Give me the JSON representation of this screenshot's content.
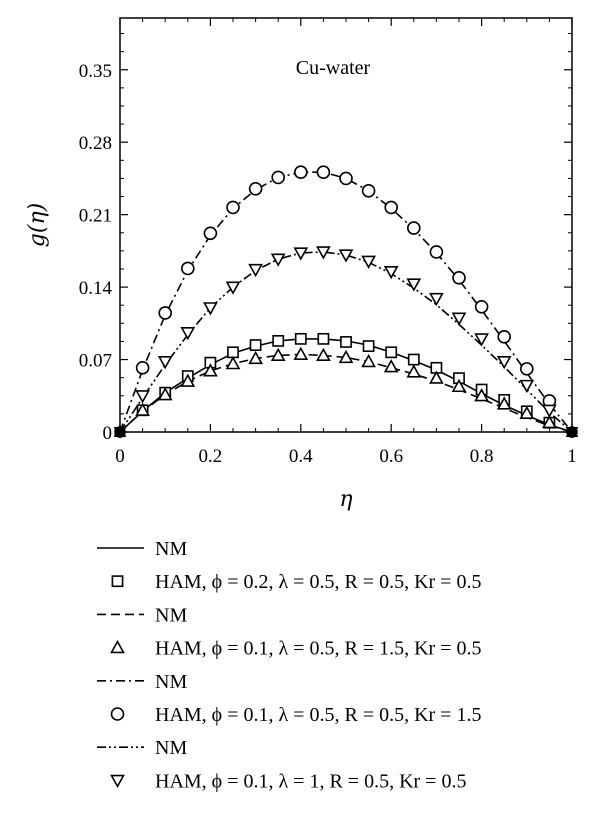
{
  "chart_data": {
    "type": "line",
    "xlabel": "η",
    "ylabel": "g(η)",
    "annotation": "Cu-water",
    "xlim": [
      0,
      1
    ],
    "ylim": [
      0,
      0.4
    ],
    "xticks": [
      0,
      0.2,
      0.4,
      0.6,
      0.8,
      1
    ],
    "xtick_labels": [
      "0",
      "0.2",
      "0.4",
      "0.6",
      "0.8",
      "1"
    ],
    "yticks": [
      0,
      0.07,
      0.14,
      0.21,
      0.28,
      0.35
    ],
    "ytick_labels": [
      "0",
      "0.07",
      "0.14",
      "0.21",
      "0.28",
      "0.35"
    ],
    "grid": false,
    "legend_position": "below",
    "series": [
      {
        "name": "NM",
        "kind": "line",
        "dash": "solid",
        "peak": 0.09,
        "x": [
          0,
          0.05,
          0.1,
          0.15,
          0.2,
          0.25,
          0.3,
          0.35,
          0.4,
          0.45,
          0.5,
          0.55,
          0.6,
          0.65,
          0.7,
          0.75,
          0.8,
          0.85,
          0.9,
          0.95,
          1
        ],
        "y": [
          0,
          0.02,
          0.038,
          0.052,
          0.065,
          0.076,
          0.083,
          0.088,
          0.09,
          0.09,
          0.088,
          0.084,
          0.077,
          0.069,
          0.06,
          0.049,
          0.037,
          0.026,
          0.016,
          0.007,
          0
        ]
      },
      {
        "name": "HAM, ϕ = 0.2, λ = 0.5, R = 0.5, Kr = 0.5",
        "kind": "marker",
        "marker": "square",
        "x": [
          0,
          0.05,
          0.1,
          0.15,
          0.2,
          0.25,
          0.3,
          0.35,
          0.4,
          0.45,
          0.5,
          0.55,
          0.6,
          0.65,
          0.7,
          0.75,
          0.8,
          0.85,
          0.9,
          0.95,
          1
        ],
        "y": [
          0,
          0.021,
          0.038,
          0.054,
          0.067,
          0.077,
          0.084,
          0.088,
          0.09,
          0.09,
          0.087,
          0.083,
          0.077,
          0.07,
          0.062,
          0.052,
          0.041,
          0.031,
          0.02,
          0.009,
          0
        ]
      },
      {
        "name": "NM",
        "kind": "line",
        "dash": "dashed",
        "x": [
          0,
          0.05,
          0.1,
          0.15,
          0.2,
          0.25,
          0.3,
          0.35,
          0.4,
          0.45,
          0.5,
          0.55,
          0.6,
          0.65,
          0.7,
          0.75,
          0.8,
          0.85,
          0.9,
          0.95,
          1
        ],
        "y": [
          0,
          0.02,
          0.036,
          0.049,
          0.059,
          0.066,
          0.071,
          0.074,
          0.075,
          0.074,
          0.072,
          0.068,
          0.062,
          0.056,
          0.049,
          0.041,
          0.032,
          0.023,
          0.014,
          0.006,
          0
        ]
      },
      {
        "name": "HAM, ϕ = 0.1, λ = 0.5, R = 1.5, Kr = 0.5",
        "kind": "marker",
        "marker": "triangle-up",
        "x": [
          0,
          0.05,
          0.1,
          0.15,
          0.2,
          0.25,
          0.3,
          0.35,
          0.4,
          0.45,
          0.5,
          0.55,
          0.6,
          0.65,
          0.7,
          0.75,
          0.8,
          0.85,
          0.9,
          0.95,
          1
        ],
        "y": [
          0,
          0.021,
          0.036,
          0.049,
          0.059,
          0.066,
          0.071,
          0.074,
          0.075,
          0.074,
          0.072,
          0.068,
          0.063,
          0.058,
          0.052,
          0.044,
          0.035,
          0.027,
          0.018,
          0.009,
          0
        ]
      },
      {
        "name": "NM",
        "kind": "line",
        "dash": "dashdot",
        "x": [
          0,
          0.05,
          0.1,
          0.15,
          0.2,
          0.25,
          0.3,
          0.35,
          0.4,
          0.45,
          0.5,
          0.55,
          0.6,
          0.65,
          0.7,
          0.75,
          0.8,
          0.85,
          0.9,
          0.95,
          1
        ],
        "y": [
          0,
          0.06,
          0.113,
          0.156,
          0.19,
          0.216,
          0.234,
          0.246,
          0.251,
          0.251,
          0.245,
          0.233,
          0.216,
          0.196,
          0.173,
          0.147,
          0.118,
          0.088,
          0.057,
          0.027,
          0
        ]
      },
      {
        "name": "HAM, ϕ = 0.1, λ = 0.5, R = 0.5, Kr = 1.5",
        "kind": "marker",
        "marker": "circle",
        "x": [
          0,
          0.05,
          0.1,
          0.15,
          0.2,
          0.25,
          0.3,
          0.35,
          0.4,
          0.45,
          0.5,
          0.55,
          0.6,
          0.65,
          0.7,
          0.75,
          0.8,
          0.85,
          0.9,
          0.95,
          1
        ],
        "y": [
          0,
          0.062,
          0.115,
          0.158,
          0.192,
          0.217,
          0.235,
          0.246,
          0.251,
          0.251,
          0.245,
          0.233,
          0.217,
          0.197,
          0.174,
          0.149,
          0.121,
          0.092,
          0.061,
          0.03,
          0
        ]
      },
      {
        "name": "NM",
        "kind": "line",
        "dash": "dashdotdot",
        "x": [
          0,
          0.05,
          0.1,
          0.15,
          0.2,
          0.25,
          0.3,
          0.35,
          0.4,
          0.45,
          0.5,
          0.55,
          0.6,
          0.65,
          0.7,
          0.75,
          0.8,
          0.85,
          0.9,
          0.95,
          1
        ],
        "y": [
          0,
          0.033,
          0.065,
          0.094,
          0.12,
          0.14,
          0.156,
          0.167,
          0.173,
          0.174,
          0.171,
          0.164,
          0.153,
          0.139,
          0.123,
          0.104,
          0.084,
          0.063,
          0.041,
          0.019,
          0
        ]
      },
      {
        "name": "HAM, ϕ = 0.1, λ = 1, R = 0.5, Kr = 0.5",
        "kind": "marker",
        "marker": "triangle-down",
        "x": [
          0,
          0.05,
          0.1,
          0.15,
          0.2,
          0.25,
          0.3,
          0.35,
          0.4,
          0.45,
          0.5,
          0.55,
          0.6,
          0.65,
          0.7,
          0.75,
          0.8,
          0.85,
          0.9,
          0.95,
          1
        ],
        "y": [
          0,
          0.035,
          0.068,
          0.096,
          0.12,
          0.14,
          0.157,
          0.167,
          0.173,
          0.174,
          0.171,
          0.165,
          0.155,
          0.143,
          0.129,
          0.11,
          0.09,
          0.068,
          0.045,
          0.021,
          0
        ]
      }
    ]
  }
}
